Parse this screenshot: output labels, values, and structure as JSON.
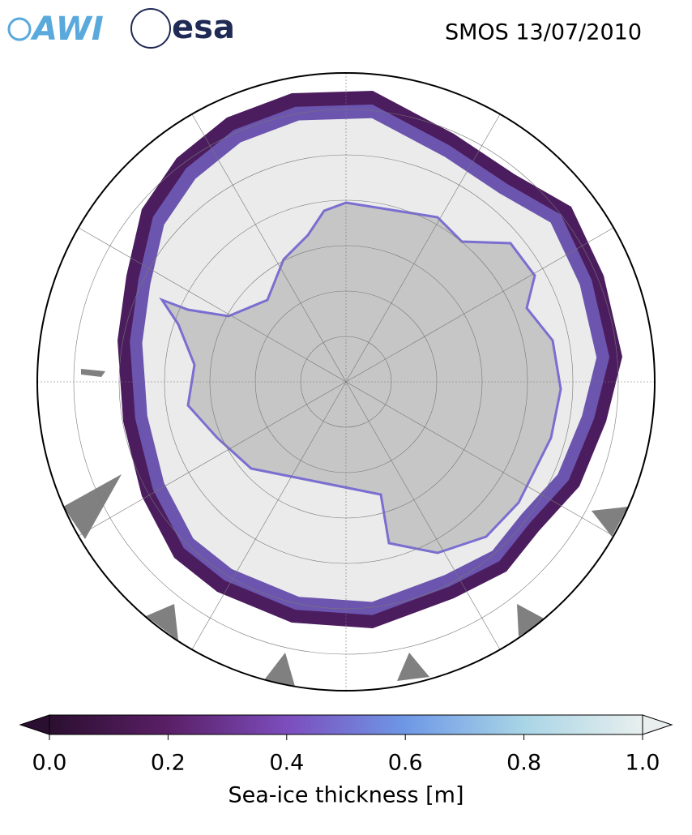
{
  "header": {
    "logos": [
      "AWI",
      "esa"
    ],
    "title": "SMOS 13/07/2010"
  },
  "colorbar": {
    "label": "Sea-ice thickness [m]",
    "lim": [
      0,
      1
    ],
    "ticks": [
      {
        "value": 0,
        "label": "0.0"
      },
      0.2,
      0.4,
      0.6,
      0.8,
      {
        "value": 1,
        "label": "1.0"
      }
    ],
    "colors": [
      "#2b0f30",
      "#5a1f66",
      "#7c4dbd",
      "#6e98e6",
      "#a9d5e6",
      "#e8efee"
    ]
  }
}
